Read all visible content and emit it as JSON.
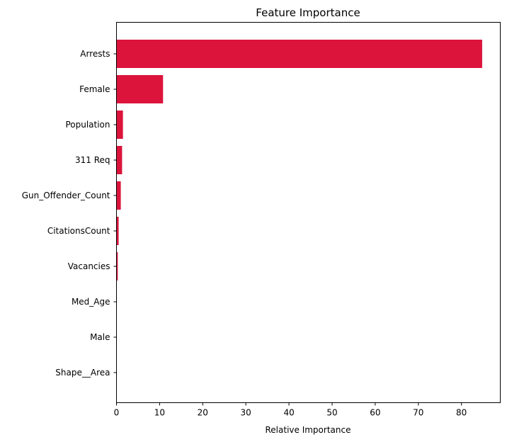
{
  "chart_data": {
    "type": "bar",
    "orientation": "horizontal",
    "title": "Feature Importance",
    "xlabel": "Relative Importance",
    "ylabel": "",
    "categories": [
      "Arrests",
      "Female",
      "Population",
      "311 Req",
      "Gun_Offender_Count",
      "CitationsCount",
      "Vacancies",
      "Med_Age",
      "Male",
      "Shape__Area"
    ],
    "values": [
      84.8,
      10.8,
      1.5,
      1.3,
      1.0,
      0.5,
      0.3,
      0.05,
      0.02,
      0.01
    ],
    "xlim": [
      0,
      89
    ],
    "xticks": [
      0,
      10,
      20,
      30,
      40,
      50,
      60,
      70,
      80
    ],
    "grid": false,
    "legend": "none",
    "bar_color": "#DC143C"
  }
}
